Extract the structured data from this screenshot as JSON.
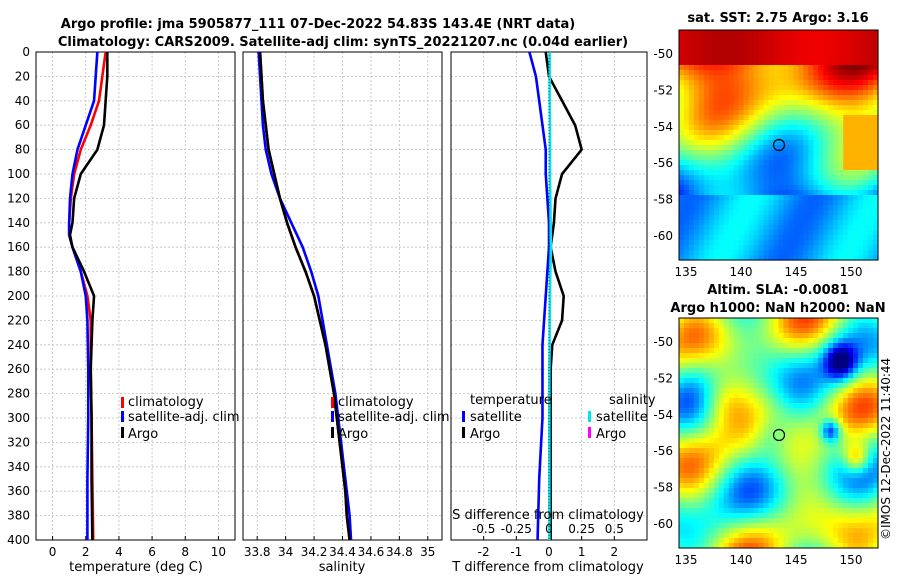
{
  "titles": {
    "line1": "Argo profile: jma 5905877_111 07-Dec-2022 54.83S 143.4E (NRT data)",
    "line2": "Climatology: CARS2009. Satellite-adj clim: synTS_20221207.nc (0.04d earlier)"
  },
  "colors": {
    "climatology": "#ff0000",
    "satellite": "#0000ff",
    "argo": "#000000",
    "sal_sat": "#00e5ee",
    "sal_argo": "#ff00ff"
  },
  "chart_data": [
    {
      "type": "line",
      "name": "temperature-profile",
      "xlabel": "temperature (deg C)",
      "ylabel": "",
      "xlim": [
        -1,
        11
      ],
      "ylim": [
        0,
        400
      ],
      "y_inverted": true,
      "xticks": [
        "0",
        "2",
        "4",
        "6",
        "8",
        "10"
      ],
      "yticks": [
        "0",
        "20",
        "40",
        "60",
        "80",
        "100",
        "120",
        "140",
        "160",
        "180",
        "200",
        "220",
        "240",
        "260",
        "280",
        "300",
        "320",
        "340",
        "360",
        "380",
        "400"
      ],
      "legend": [
        "climatology",
        "satellite-adj. clim",
        "Argo"
      ],
      "depth": [
        0,
        20,
        40,
        60,
        80,
        100,
        120,
        140,
        150,
        160,
        180,
        200,
        220,
        260,
        300,
        350,
        400
      ],
      "series": [
        {
          "name": "climatology",
          "values": [
            3.2,
            3.0,
            2.8,
            2.3,
            1.7,
            1.3,
            1.1,
            1.0,
            1.0,
            1.2,
            1.7,
            2.1,
            2.3,
            2.3,
            2.35,
            2.4,
            2.45
          ]
        },
        {
          "name": "satellite-adj. clim",
          "values": [
            2.7,
            2.6,
            2.5,
            2.0,
            1.5,
            1.2,
            1.05,
            1.0,
            1.0,
            1.2,
            1.7,
            2.0,
            2.1,
            2.15,
            2.15,
            2.1,
            2.1
          ]
        },
        {
          "name": "Argo",
          "values": [
            3.3,
            3.3,
            3.2,
            3.1,
            2.7,
            1.7,
            1.3,
            1.2,
            1.05,
            1.2,
            1.9,
            2.5,
            2.4,
            2.3,
            2.35,
            2.35,
            2.4
          ]
        }
      ]
    },
    {
      "type": "line",
      "name": "salinity-profile",
      "xlabel": "salinity",
      "xlim": [
        33.7,
        35.1
      ],
      "ylim": [
        0,
        400
      ],
      "y_inverted": true,
      "xticks": [
        "33.8",
        "34",
        "34.2",
        "34.4",
        "34.6",
        "34.8",
        "35"
      ],
      "legend": [
        "climatology",
        "satellite-adj. clim",
        "Argo"
      ],
      "depth": [
        0,
        20,
        40,
        60,
        80,
        100,
        120,
        140,
        160,
        180,
        200,
        220,
        240,
        260,
        280,
        300,
        320,
        340,
        360,
        380,
        400
      ],
      "series": [
        {
          "name": "climatology",
          "values": [
            33.82,
            33.83,
            33.84,
            33.86,
            33.88,
            33.92,
            33.96,
            34.01,
            34.07,
            34.14,
            34.2,
            34.24,
            34.28,
            34.31,
            34.34,
            34.36,
            34.38,
            34.4,
            34.42,
            34.43,
            34.45
          ]
        },
        {
          "name": "satellite-adj. clim",
          "values": [
            33.81,
            33.82,
            33.83,
            33.84,
            33.86,
            33.9,
            33.96,
            34.04,
            34.12,
            34.18,
            34.23,
            34.26,
            34.29,
            34.32,
            34.35,
            34.37,
            34.39,
            34.41,
            34.43,
            34.45,
            34.46
          ]
        },
        {
          "name": "Argo",
          "values": [
            33.82,
            33.83,
            33.84,
            33.86,
            33.88,
            33.92,
            33.96,
            34.01,
            34.07,
            34.14,
            34.2,
            34.24,
            34.28,
            34.31,
            34.34,
            34.36,
            34.38,
            34.4,
            34.42,
            34.43,
            34.45
          ]
        }
      ]
    },
    {
      "type": "line",
      "name": "difference-from-climatology",
      "xlabel": "T difference from climatology",
      "top_label": "S difference from climatology",
      "xlim": [
        -3,
        3
      ],
      "ylim": [
        0,
        400
      ],
      "y_inverted": true,
      "xticks": [
        "-2",
        "-1",
        "0",
        "1",
        "2"
      ],
      "top_xticks": [
        "-0.5",
        "-0.25",
        "0",
        "0.25",
        "0.5"
      ],
      "legend_temperature": {
        "header": "temperature",
        "items": [
          "satellite",
          "Argo"
        ]
      },
      "legend_salinity": {
        "header": "salinity",
        "items": [
          "satellite",
          "Argo"
        ]
      },
      "depth": [
        0,
        20,
        40,
        60,
        80,
        100,
        120,
        140,
        160,
        180,
        200,
        220,
        240,
        260,
        300,
        350,
        400
      ],
      "series": [
        {
          "name": "T satellite",
          "values": [
            -0.6,
            -0.4,
            -0.3,
            -0.2,
            -0.1,
            -0.1,
            -0.05,
            0,
            0,
            -0.05,
            -0.1,
            -0.15,
            -0.2,
            -0.2,
            -0.2,
            -0.3,
            -0.35
          ]
        },
        {
          "name": "T Argo",
          "values": [
            -0.1,
            0,
            0.4,
            0.8,
            1.0,
            0.4,
            0.2,
            0.15,
            0.05,
            0.2,
            0.45,
            0.4,
            0.1,
            0.05,
            0.05,
            0.05,
            0.05
          ]
        },
        {
          "name": "S satellite",
          "values": [
            0.02,
            0.02,
            0.02,
            0.03,
            0.03,
            0.03,
            0.04,
            0.05,
            0.06,
            0.04,
            0.03,
            0.02,
            0.02,
            0.01,
            0.01,
            0.01,
            0.01
          ]
        }
      ]
    }
  ],
  "maps": {
    "sst": {
      "title": "sat. SST: 2.75 Argo: 3.16",
      "yticks": [
        "-50",
        "-52",
        "-54",
        "-56",
        "-58",
        "-60"
      ],
      "xticks": [
        "135",
        "140",
        "145",
        "150"
      ]
    },
    "sla": {
      "title1": "Altim. SLA: -0.0081",
      "title2": "Argo h1000: NaN h2000: NaN",
      "yticks": [
        "-50",
        "-52",
        "-54",
        "-56",
        "-58",
        "-60"
      ],
      "xticks": [
        "135",
        "140",
        "145",
        "150"
      ]
    }
  },
  "credit": "©IMOS 12-Dec-2022 11:40:44"
}
